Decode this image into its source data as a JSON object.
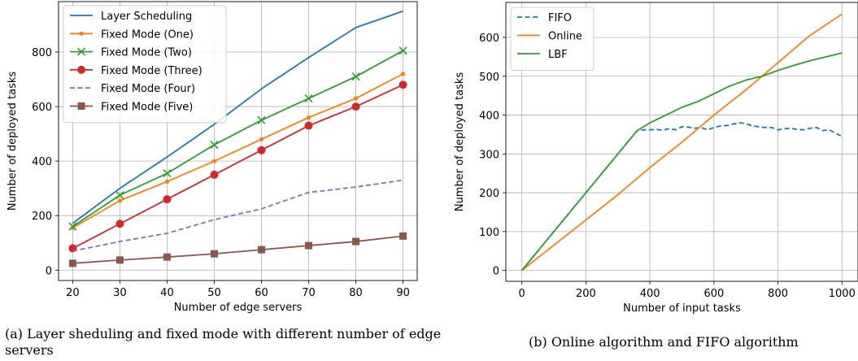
{
  "captions": {
    "a": "(a) Layer sheduling and fixed mode with different number of edge servers",
    "b": "(b) Online algorithm and FIFO algorithm"
  },
  "chart_data": [
    {
      "type": "line",
      "xlabel": "Number of edge servers",
      "ylabel": "Number of deployed tasks",
      "x": [
        20,
        30,
        40,
        50,
        60,
        70,
        80,
        90
      ],
      "xticks": [
        20,
        30,
        40,
        50,
        60,
        70,
        80,
        90
      ],
      "yticks": [
        0,
        200,
        400,
        600,
        800
      ],
      "xlim": [
        17,
        93
      ],
      "ylim": [
        -38,
        985
      ],
      "grid": true,
      "legend": "top-left",
      "series": [
        {
          "name": "Layer Scheduling",
          "values": [
            172,
            300,
            415,
            535,
            665,
            780,
            890,
            950
          ],
          "color": "#1f77b4",
          "dash": "solid",
          "marker": "none"
        },
        {
          "name": "Fixed Mode (One)",
          "values": [
            155,
            255,
            325,
            400,
            480,
            560,
            630,
            720
          ],
          "color": "#ff7f0e",
          "dash": "solid",
          "marker": "dot"
        },
        {
          "name": "Fixed Mode (Two)",
          "values": [
            160,
            275,
            355,
            460,
            550,
            630,
            710,
            805
          ],
          "color": "#2ca02c",
          "dash": "solid",
          "marker": "x"
        },
        {
          "name": "Fixed Mode (Three)",
          "values": [
            80,
            170,
            260,
            350,
            440,
            530,
            600,
            680
          ],
          "color": "#d62728",
          "dash": "solid",
          "marker": "circle"
        },
        {
          "name": "Fixed Mode (Four)",
          "values": [
            70,
            105,
            135,
            185,
            225,
            285,
            305,
            330
          ],
          "color": "#9467bd",
          "dash": "dashed",
          "marker": "none"
        },
        {
          "name": "Fixed Mode (Five)",
          "values": [
            25,
            37,
            48,
            60,
            75,
            90,
            105,
            125
          ],
          "color": "#8c564b",
          "dash": "solid",
          "marker": "square"
        }
      ]
    },
    {
      "type": "line",
      "xlabel": "Number of input tasks",
      "ylabel": "Number of deployed tasks",
      "xticks": [
        0,
        200,
        400,
        600,
        800,
        1000
      ],
      "yticks": [
        0,
        100,
        200,
        300,
        400,
        500,
        600
      ],
      "xlim": [
        -50,
        1050
      ],
      "ylim": [
        -28,
        690
      ],
      "grid": true,
      "legend": "top-left",
      "series": [
        {
          "name": "FIFO",
          "color": "#1f77b4",
          "dash": "dashed",
          "x": [
            0,
            360,
            380,
            400,
            420,
            440,
            460,
            480,
            500,
            520,
            540,
            560,
            580,
            600,
            620,
            640,
            660,
            680,
            700,
            720,
            740,
            760,
            780,
            800,
            820,
            840,
            860,
            880,
            900,
            920,
            940,
            960,
            980,
            1000
          ],
          "y": [
            0,
            360,
            362,
            362,
            363,
            361,
            365,
            362,
            370,
            369,
            366,
            368,
            362,
            368,
            372,
            373,
            377,
            380,
            378,
            372,
            370,
            368,
            368,
            362,
            365,
            366,
            363,
            362,
            366,
            368,
            360,
            362,
            353,
            345
          ]
        },
        {
          "name": "Online",
          "color": "#ff7f0e",
          "dash": "solid",
          "x": [
            0,
            100,
            200,
            300,
            400,
            500,
            600,
            700,
            800,
            900,
            1000
          ],
          "y": [
            0,
            65,
            130,
            195,
            265,
            330,
            400,
            465,
            535,
            605,
            660
          ]
        },
        {
          "name": "LBF",
          "color": "#2ca02c",
          "dash": "solid",
          "x": [
            0,
            360,
            400,
            450,
            500,
            550,
            600,
            650,
            700,
            750,
            800,
            850,
            900,
            950,
            1000
          ],
          "y": [
            0,
            360,
            380,
            400,
            420,
            435,
            455,
            475,
            490,
            500,
            515,
            528,
            540,
            550,
            560
          ]
        }
      ]
    }
  ]
}
